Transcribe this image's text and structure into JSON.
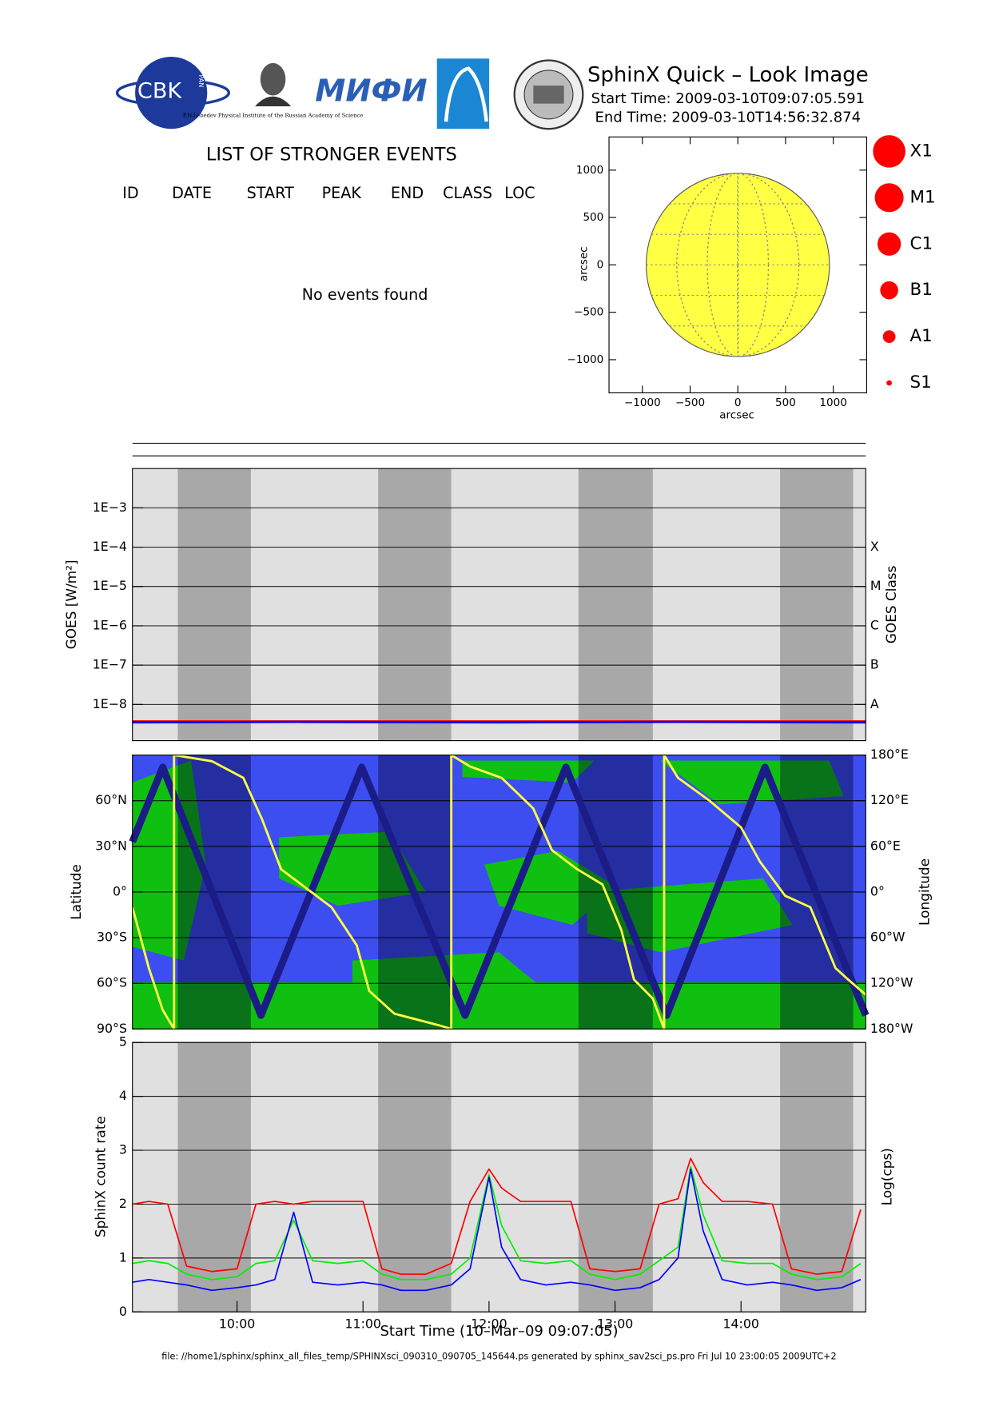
{
  "header": {
    "title": "SphinX Quick – Look Image",
    "start_time": "Start Time: 2009-03-10T09:07:05.591",
    "end_time": "End Time: 2009-03-10T14:56:32.874",
    "logo_cbk": "CBK",
    "logo_pan": "PAN",
    "logo_lebedev": "P.N.Lebedev Physical Institute of the Russian Academy of Science",
    "logo_mifi": "МИФИ"
  },
  "events_table": {
    "title": "LIST OF STRONGER EVENTS",
    "columns": [
      "ID",
      "DATE",
      "START",
      "PEAK",
      "END",
      "CLASS",
      "LOC"
    ],
    "message": "No events found"
  },
  "chart_data": [
    {
      "type": "disk",
      "xlabel": "arcsec",
      "ylabel": "arcsec",
      "xlim": [
        -1350,
        1350
      ],
      "ylim": [
        -1350,
        1350
      ],
      "xticks": [
        {
          "value": -1000,
          "label": "−1000"
        },
        {
          "value": -500,
          "label": "−500"
        },
        0,
        500,
        1000
      ],
      "yticks": [
        {
          "value": -1000,
          "label": "−1000"
        },
        {
          "value": -500,
          "label": "−500"
        },
        0,
        500,
        1000
      ],
      "disk_radius": 960,
      "color": "#ffff44",
      "grid": true,
      "legend": [
        "X1",
        "M1",
        "C1",
        "B1",
        "A1",
        "S1"
      ],
      "legend_color": "#ff0000"
    },
    {
      "type": "line",
      "log_y": true,
      "ylabel": "GOES [W/m²]",
      "y2label": "GOES Class",
      "xlim": [
        9.17,
        14.99
      ],
      "ylim": [
        1.2e-09,
        0.01
      ],
      "yticks": [
        {
          "value": 1e-08,
          "label": "1E−8"
        },
        {
          "value": 1e-07,
          "label": "1E−7"
        },
        {
          "value": 1e-06,
          "label": "1E−6"
        },
        {
          "value": 1e-05,
          "label": "1E−5"
        },
        {
          "value": 0.0001,
          "label": "1E−4"
        },
        {
          "value": 0.001,
          "label": "1E−3"
        }
      ],
      "y2lim": [
        1.2e-09,
        0.01
      ],
      "y2ticks": [
        {
          "value": 1e-08,
          "label": "A"
        },
        {
          "value": 1e-07,
          "label": "B"
        },
        {
          "value": 1e-06,
          "label": "C"
        },
        {
          "value": 1e-05,
          "label": "M"
        },
        {
          "value": 0.0001,
          "label": "X"
        }
      ],
      "grid": true,
      "shaded": [
        [
          9.53,
          10.11
        ],
        [
          11.12,
          11.7
        ],
        [
          12.71,
          13.3
        ],
        [
          14.31,
          14.89
        ]
      ],
      "x": [
        9.17,
        10.5,
        12.0,
        13.5,
        14.99
      ],
      "series": [
        {
          "color": "#ff0000",
          "values": [
            3.7e-09,
            3.7e-09,
            3.7e-09,
            3.7e-09,
            3.7e-09
          ]
        },
        {
          "color": "#0000ff",
          "values": [
            3.5e-09,
            3.6e-09,
            3.5e-09,
            3.6e-09,
            3.5e-09
          ]
        }
      ]
    },
    {
      "type": "track",
      "ylabel": "Latitude",
      "y2label": "Longitude",
      "xlim": [
        9.17,
        14.99
      ],
      "ylim": [
        -90,
        90
      ],
      "yticks": [
        {
          "value": -90,
          "label": "90°S"
        },
        {
          "value": -60,
          "label": "60°S"
        },
        {
          "value": -30,
          "label": "30°S"
        },
        {
          "value": 0,
          "label": "0°"
        },
        {
          "value": 30,
          "label": "30°N"
        },
        {
          "value": 60,
          "label": "60°N"
        }
      ],
      "y2lim": [
        -180,
        180
      ],
      "y2ticks": [
        {
          "value": -180,
          "label": "180°W"
        },
        {
          "value": -120,
          "label": "120°W"
        },
        {
          "value": -60,
          "label": "60°W"
        },
        {
          "value": 0,
          "label": "0°"
        },
        {
          "value": 60,
          "label": "60°E"
        },
        {
          "value": 120,
          "label": "120°E"
        },
        {
          "value": 180,
          "label": "180°E"
        }
      ],
      "grid": true,
      "shaded": [
        [
          9.53,
          10.11
        ],
        [
          11.12,
          11.7
        ],
        [
          12.71,
          13.3
        ],
        [
          14.31,
          14.89
        ]
      ],
      "series": [
        {
          "color": "#1c1c88",
          "x": [
            9.17,
            9.41,
            10.19,
            10.99,
            11.81,
            12.61,
            13.41,
            14.19,
            14.99
          ],
          "values": [
            33,
            82,
            -81,
            82,
            -81,
            82,
            -81,
            82,
            -81
          ]
        },
        {
          "color": "#ffff44",
          "axis": "y2",
          "x": [
            9.17,
            9.3,
            9.41,
            9.5,
            9.5,
            9.8,
            10.05,
            10.2,
            10.35,
            10.55,
            10.75,
            10.95,
            11.05,
            11.25,
            11.6,
            11.7,
            11.7,
            11.85,
            12.1,
            12.35,
            12.5,
            12.7,
            12.9,
            13.05,
            13.15,
            13.3,
            13.39,
            13.39,
            13.5,
            13.75,
            14.0,
            14.15,
            14.35,
            14.55,
            14.75,
            14.85,
            14.99
          ],
          "values": [
            -20,
            -100,
            -155,
            -180,
            180,
            172,
            150,
            95,
            30,
            5,
            -20,
            -70,
            -130,
            -160,
            -175,
            -180,
            180,
            165,
            150,
            110,
            55,
            30,
            10,
            -50,
            -115,
            -140,
            -180,
            180,
            150,
            120,
            85,
            40,
            -5,
            -20,
            -100,
            -115,
            -135
          ]
        }
      ]
    },
    {
      "type": "line",
      "ylabel": "SphinX count rate",
      "y2label": "Log(cps)",
      "xlabel": "Start Time (10–Mar–09 09:07:05)",
      "xlim": [
        9.17,
        14.99
      ],
      "xticks": [
        {
          "value": 10,
          "label": "10:00"
        },
        {
          "value": 11,
          "label": "11:00"
        },
        {
          "value": 12,
          "label": "12:00"
        },
        {
          "value": 13,
          "label": "13:00"
        },
        {
          "value": 14,
          "label": "14:00"
        }
      ],
      "ylim": [
        0,
        5
      ],
      "yticks": [
        0,
        1,
        2,
        3,
        4,
        5
      ],
      "grid": true,
      "shaded": [
        [
          9.53,
          10.11
        ],
        [
          11.12,
          11.7
        ],
        [
          12.71,
          13.3
        ],
        [
          14.31,
          14.89
        ]
      ],
      "x": [
        9.17,
        9.3,
        9.45,
        9.6,
        9.8,
        10.0,
        10.15,
        10.3,
        10.45,
        10.6,
        10.8,
        11.0,
        11.15,
        11.3,
        11.5,
        11.7,
        11.85,
        12.0,
        12.1,
        12.25,
        12.45,
        12.65,
        12.8,
        13.0,
        13.2,
        13.35,
        13.5,
        13.6,
        13.7,
        13.85,
        14.05,
        14.25,
        14.4,
        14.6,
        14.8,
        14.95
      ],
      "series": [
        {
          "color": "#ff0000",
          "values": [
            2.0,
            2.05,
            2.0,
            0.85,
            0.75,
            0.8,
            2.0,
            2.05,
            2.0,
            2.05,
            2.05,
            2.05,
            0.8,
            0.7,
            0.7,
            0.9,
            2.05,
            2.65,
            2.3,
            2.05,
            2.05,
            2.05,
            0.8,
            0.75,
            0.8,
            2.0,
            2.1,
            2.85,
            2.4,
            2.05,
            2.05,
            2.0,
            0.8,
            0.7,
            0.75,
            1.9
          ]
        },
        {
          "color": "#00ee00",
          "values": [
            0.9,
            0.95,
            0.9,
            0.7,
            0.6,
            0.65,
            0.9,
            0.95,
            1.7,
            0.95,
            0.9,
            0.95,
            0.7,
            0.6,
            0.6,
            0.7,
            1.0,
            2.55,
            1.6,
            0.95,
            0.9,
            0.95,
            0.7,
            0.6,
            0.7,
            0.95,
            1.2,
            2.7,
            1.8,
            0.95,
            0.9,
            0.9,
            0.7,
            0.6,
            0.65,
            0.9
          ]
        },
        {
          "color": "#0000ff",
          "values": [
            0.55,
            0.6,
            0.55,
            0.5,
            0.4,
            0.45,
            0.5,
            0.6,
            1.85,
            0.55,
            0.5,
            0.55,
            0.5,
            0.4,
            0.4,
            0.5,
            0.8,
            2.5,
            1.2,
            0.6,
            0.5,
            0.55,
            0.5,
            0.4,
            0.45,
            0.6,
            1.0,
            2.65,
            1.5,
            0.6,
            0.5,
            0.55,
            0.5,
            0.4,
            0.45,
            0.6
          ]
        }
      ]
    }
  ],
  "footer": "file: //home1/sphinx/sphinx_all_files_temp/SPHINXsci_090310_090705_145644.ps generated by sphinx_sav2sci_ps.pro Fri Jul 10 23:00:05 2009UTC+2"
}
